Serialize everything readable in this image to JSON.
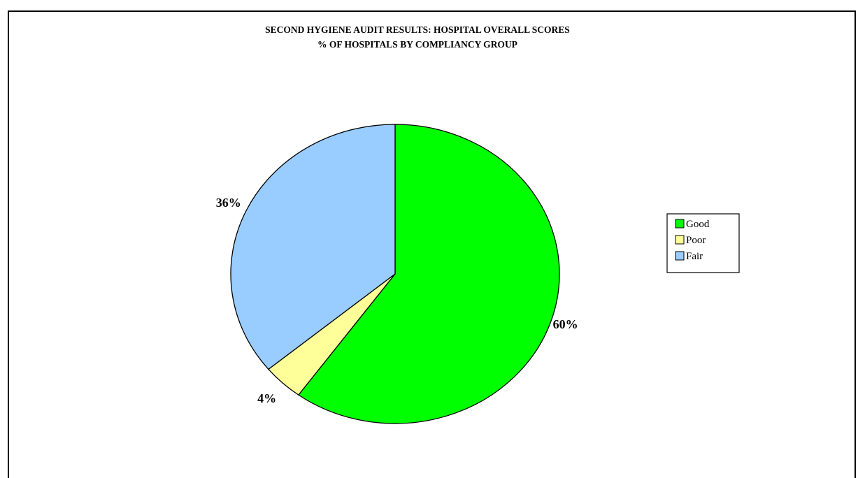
{
  "chart_data": {
    "type": "pie",
    "title": "SECOND HYGIENE AUDIT RESULTS: HOSPITAL OVERALL SCORES",
    "subtitle": "% OF HOSPITALS BY COMPLIANCY GROUP",
    "categories": [
      "Good",
      "Poor",
      "Fair"
    ],
    "values": [
      60,
      4,
      36
    ],
    "value_labels": [
      "60%",
      "4%",
      "36%"
    ],
    "colors": [
      "#00ff00",
      "#ffff99",
      "#99ccff"
    ],
    "legend": {
      "position": "right",
      "entries": [
        "Good",
        "Poor",
        "Fair"
      ]
    },
    "start": "12 o'clock, clockwise"
  }
}
